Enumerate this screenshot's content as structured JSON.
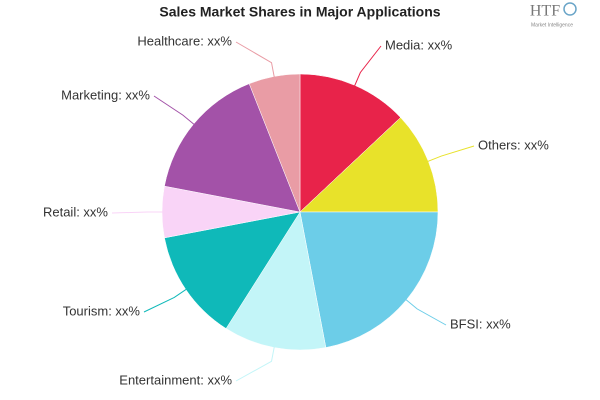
{
  "chart_data": {
    "type": "pie",
    "title": "Sales Market Shares in Major Applications",
    "categories": [
      "Media: xx%",
      "Others: xx%",
      "BFSI: xx%",
      "Entertainment: xx%",
      "Tourism: xx%",
      "Retail: xx%",
      "Marketing: xx%",
      "Healthcare: xx%"
    ],
    "values": [
      13,
      12,
      22,
      12,
      13,
      6,
      16,
      6
    ],
    "colors": [
      "#e8234a",
      "#e8e22a",
      "#6ccde8",
      "#c3f5f8",
      "#0fb9b9",
      "#f9d4f7",
      "#a352a8",
      "#e99ca5"
    ]
  },
  "logo": {
    "text": "HTF",
    "subtitle": "Market Intelligence"
  }
}
